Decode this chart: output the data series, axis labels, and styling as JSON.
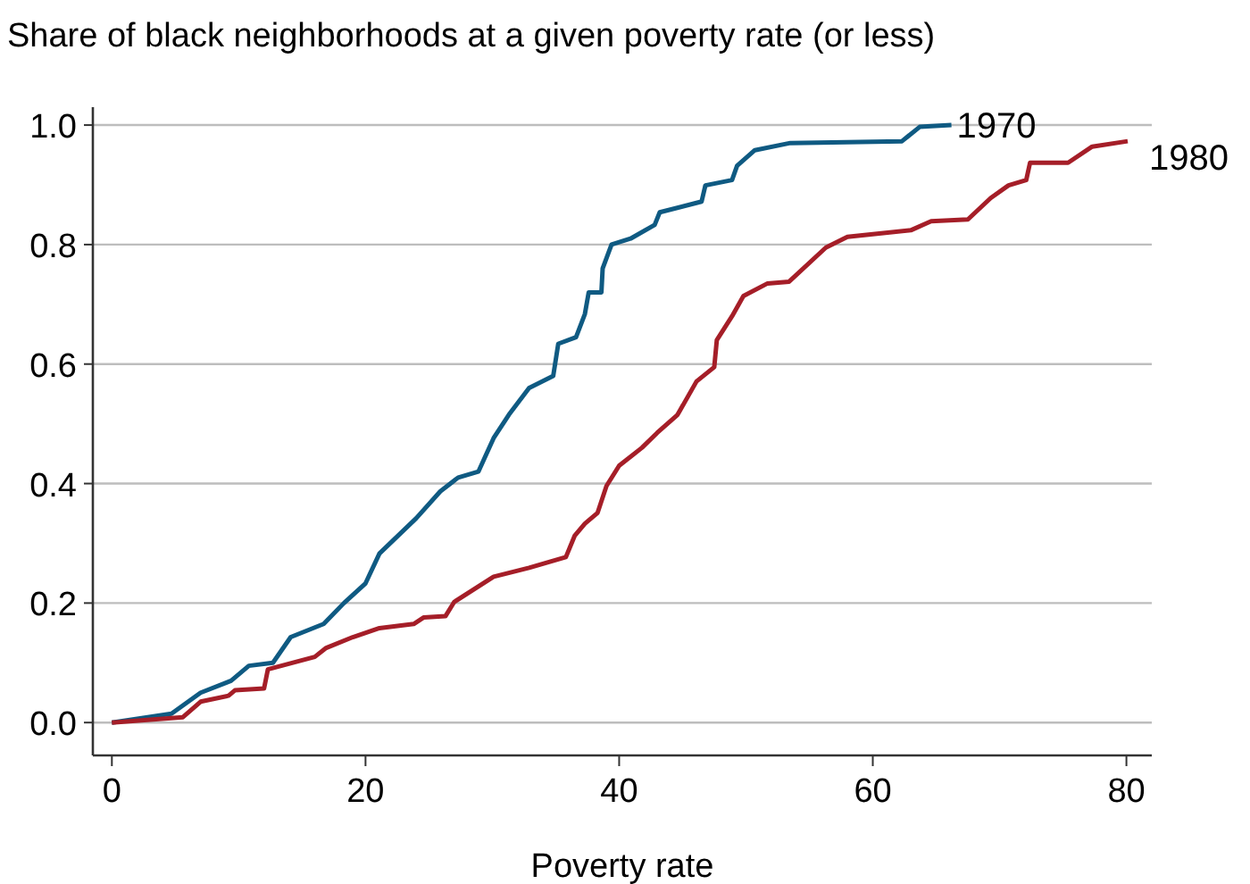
{
  "chart_data": {
    "type": "line",
    "title": "Share of black neighborhoods at a given poverty rate (or less)",
    "xlabel": "Poverty rate",
    "xlim": [
      -1.5,
      82
    ],
    "xticks": [
      0,
      20,
      40,
      60,
      80
    ],
    "ylim": [
      -0.055,
      1.03
    ],
    "yticks": [
      {
        "value": 0,
        "label": "0.0"
      },
      {
        "value": 0.2,
        "label": "0.2"
      },
      {
        "value": 0.4,
        "label": "0.4"
      },
      {
        "value": 0.6,
        "label": "0.6"
      },
      {
        "value": 0.8,
        "label": "0.8"
      },
      {
        "value": 1,
        "label": "1.0"
      }
    ],
    "grid": "y",
    "legend": false,
    "line_style": "solid",
    "marker": "none",
    "series": [
      {
        "name": "1970",
        "color": "#0f5a82",
        "x": [
          0,
          4.7,
          7,
          9.4,
          10.8,
          12.7,
          14.1,
          16.7,
          18.3,
          20,
          21.1,
          24,
          25.9,
          27.3,
          28.9,
          30.1,
          31.3,
          32.9,
          34.8,
          35.2,
          36.6,
          37.3,
          37.6,
          38.6,
          38.7,
          39.4,
          40.9,
          42.8,
          43.2,
          46.5,
          46.8,
          48.9,
          49.3,
          50.7,
          53.5,
          62.3,
          63.7,
          66.2
        ],
        "values": [
          0,
          0.015,
          0.05,
          0.07,
          0.095,
          0.1,
          0.143,
          0.165,
          0.2,
          0.233,
          0.283,
          0.342,
          0.387,
          0.41,
          0.42,
          0.476,
          0.515,
          0.56,
          0.58,
          0.634,
          0.645,
          0.684,
          0.72,
          0.72,
          0.76,
          0.8,
          0.81,
          0.833,
          0.854,
          0.872,
          0.899,
          0.908,
          0.932,
          0.958,
          0.97,
          0.973,
          0.997,
          1.0
        ]
      },
      {
        "name": "1980",
        "color": "#a51e28",
        "x": [
          0,
          5.6,
          7,
          9.2,
          9.7,
          12,
          12.3,
          16,
          16.9,
          19,
          21.1,
          23.8,
          24.6,
          26.3,
          27,
          30.1,
          32.9,
          35.8,
          36.5,
          37.3,
          38.3,
          39,
          40,
          41.8,
          43,
          44.6,
          46.1,
          47.5,
          47.7,
          48.9,
          49.8,
          51.7,
          53.4,
          56.3,
          58,
          63,
          64.6,
          67.5,
          69.3,
          70.7,
          72.1,
          72.4,
          75.4,
          77.3,
          80.1
        ],
        "values": [
          0,
          0.009,
          0.035,
          0.045,
          0.054,
          0.057,
          0.089,
          0.11,
          0.125,
          0.143,
          0.158,
          0.165,
          0.176,
          0.178,
          0.202,
          0.244,
          0.259,
          0.277,
          0.313,
          0.333,
          0.351,
          0.396,
          0.43,
          0.46,
          0.485,
          0.515,
          0.571,
          0.595,
          0.64,
          0.68,
          0.714,
          0.735,
          0.738,
          0.795,
          0.813,
          0.824,
          0.839,
          0.842,
          0.878,
          0.899,
          0.908,
          0.937,
          0.937,
          0.964,
          0.973
        ]
      }
    ]
  }
}
